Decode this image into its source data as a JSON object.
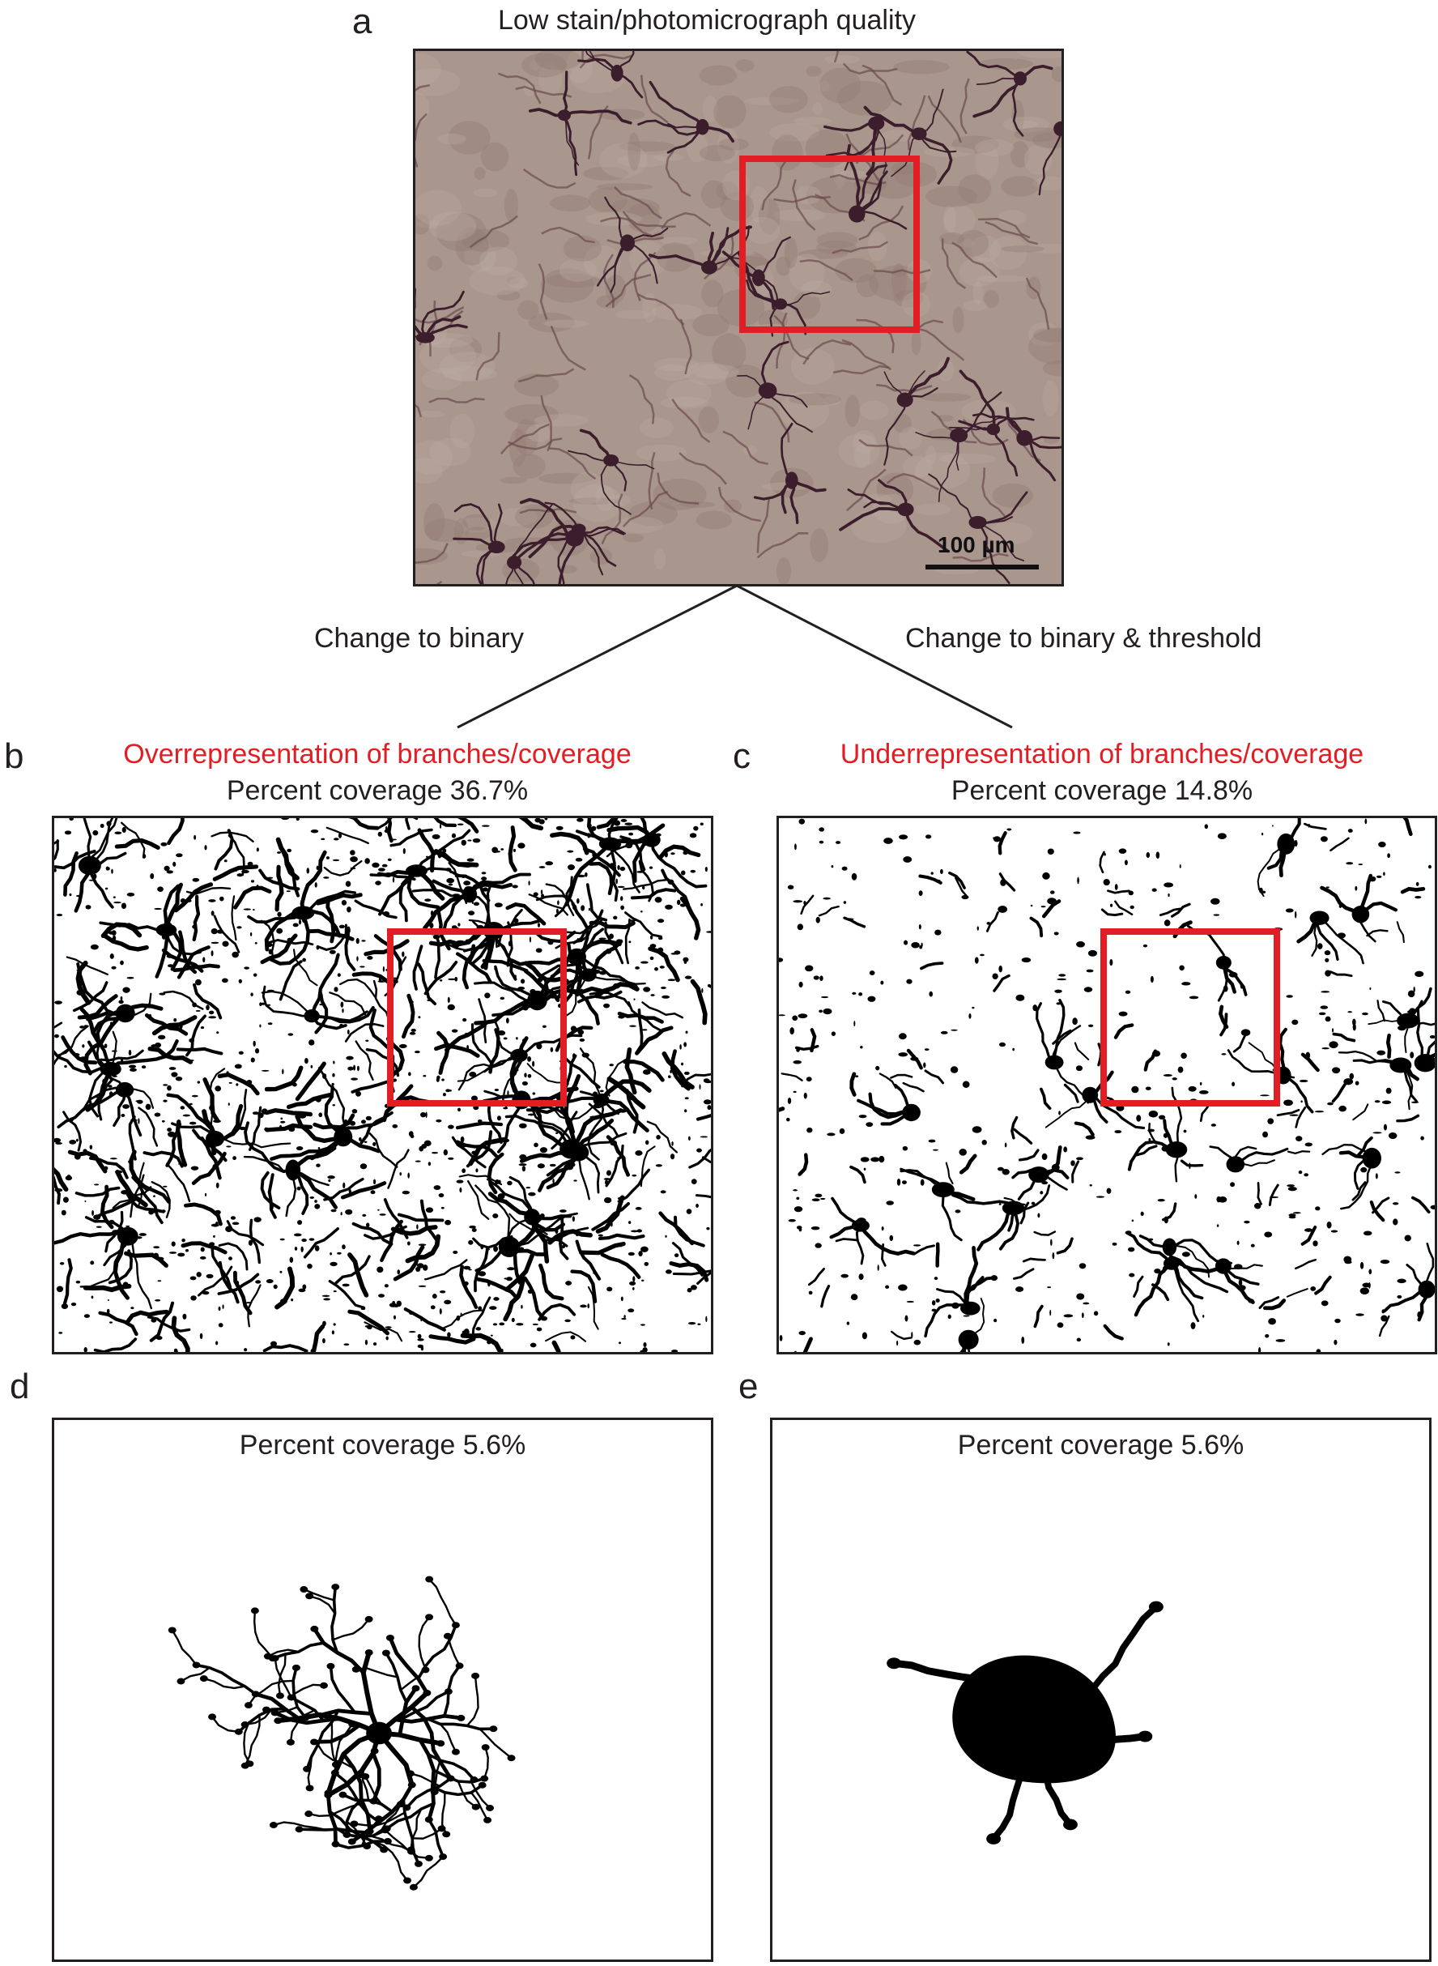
{
  "panels": {
    "a": {
      "label": "a",
      "title": "Low stain/photomicrograph quality",
      "scale_bar": "100 µm"
    },
    "b": {
      "label": "b",
      "title": "Overrepresentation of branches/coverage",
      "subtitle": "Percent coverage 36.7%"
    },
    "c": {
      "label": "c",
      "title": "Underrepresentation of branches/coverage",
      "subtitle": "Percent coverage 14.8%"
    },
    "d": {
      "label": "d",
      "subtitle": "Percent coverage 5.6%"
    },
    "e": {
      "label": "e",
      "subtitle": "Percent coverage 5.6%"
    }
  },
  "branches": {
    "left": "Change to binary",
    "right": "Change to binary & threshold"
  },
  "colors": {
    "highlight": "#e31d24",
    "stain_background": "#a9968c",
    "stain_cells": "#3b1d2c",
    "binary": "#000000"
  }
}
